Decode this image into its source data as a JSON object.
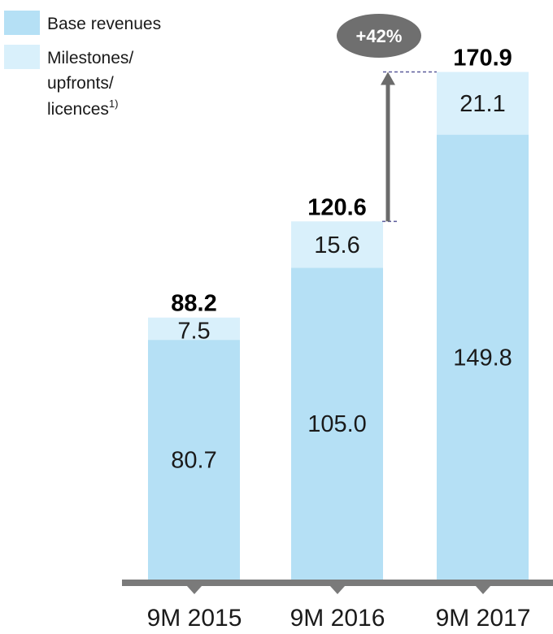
{
  "colors": {
    "base": "#b5e0f5",
    "milestones": "#d9f0fb",
    "axis": "#7a7a7a",
    "arrow": "#6b6b6b",
    "badge": "#6f6f6f"
  },
  "legend": {
    "base_label": "Base revenues",
    "milestones_line1": "Milestones/",
    "milestones_line2": "upfronts/",
    "milestones_line3": "licences",
    "milestones_footnote": "1)"
  },
  "growth_badge": "+42%",
  "chart_data": {
    "type": "bar",
    "stacked": true,
    "categories": [
      "9M 2015",
      "9M 2016",
      "9M 2017"
    ],
    "series": [
      {
        "name": "Base revenues",
        "values": [
          80.7,
          105.0,
          149.8
        ],
        "labels": [
          "80.7",
          "105.0",
          "149.8"
        ]
      },
      {
        "name": "Milestones/upfronts/licences",
        "values": [
          7.5,
          15.6,
          21.1
        ],
        "labels": [
          "7.5",
          "15.6",
          "21.1"
        ]
      }
    ],
    "totals": [
      88.2,
      120.6,
      170.9
    ],
    "total_labels": [
      "88.2",
      "120.6",
      "170.9"
    ],
    "annotations": [
      {
        "text": "+42%",
        "from": "9M 2016",
        "to": "9M 2017"
      }
    ],
    "legend_position": "top-left",
    "grid": false
  }
}
